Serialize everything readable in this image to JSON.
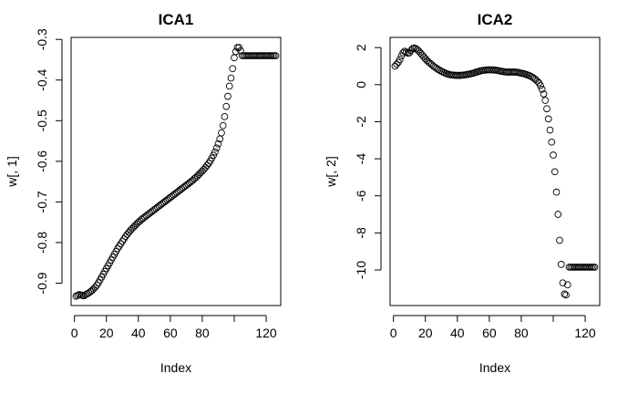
{
  "chart_data": [
    {
      "type": "scatter",
      "title": "ICA1",
      "xlabel": "Index",
      "ylabel": "w[, 1]",
      "xlim": [
        -2.1,
        129.1
      ],
      "ylim": [
        -0.955,
        -0.295
      ],
      "xticks": [
        0,
        20,
        40,
        60,
        80,
        100,
        120
      ],
      "xtick_labels": [
        "0",
        "20",
        "40",
        "60",
        "80",
        "",
        "120"
      ],
      "yticks": [
        -0.9,
        -0.8,
        -0.7,
        -0.6,
        -0.5,
        -0.4,
        -0.3
      ],
      "ytick_labels": [
        "-0.9",
        "-0.8",
        "-0.7",
        "-0.6",
        "-0.5",
        "-0.4",
        "-0.3"
      ],
      "marker": "open-circle",
      "grid": false,
      "x": [
        1,
        2,
        3,
        4,
        5,
        6,
        7,
        8,
        9,
        10,
        11,
        12,
        13,
        14,
        15,
        16,
        17,
        18,
        19,
        20,
        21,
        22,
        23,
        24,
        25,
        26,
        27,
        28,
        29,
        30,
        31,
        32,
        33,
        34,
        35,
        36,
        37,
        38,
        39,
        40,
        41,
        42,
        43,
        44,
        45,
        46,
        47,
        48,
        49,
        50,
        51,
        52,
        53,
        54,
        55,
        56,
        57,
        58,
        59,
        60,
        61,
        62,
        63,
        64,
        65,
        66,
        67,
        68,
        69,
        70,
        71,
        72,
        73,
        74,
        75,
        76,
        77,
        78,
        79,
        80,
        81,
        82,
        83,
        84,
        85,
        86,
        87,
        88,
        89,
        90,
        91,
        92,
        93,
        94,
        95,
        96,
        97,
        98,
        99,
        100,
        101,
        102,
        103,
        104,
        105,
        106,
        107,
        108,
        109,
        110,
        111,
        112,
        113,
        114,
        115,
        116,
        117,
        118,
        119,
        120,
        121,
        122,
        123,
        124,
        125,
        126
      ],
      "y": [
        -0.932,
        -0.93,
        -0.928,
        -0.929,
        -0.93,
        -0.931,
        -0.928,
        -0.926,
        -0.924,
        -0.921,
        -0.918,
        -0.914,
        -0.91,
        -0.905,
        -0.899,
        -0.892,
        -0.885,
        -0.878,
        -0.871,
        -0.864,
        -0.857,
        -0.85,
        -0.843,
        -0.836,
        -0.829,
        -0.822,
        -0.815,
        -0.809,
        -0.803,
        -0.797,
        -0.791,
        -0.785,
        -0.78,
        -0.775,
        -0.77,
        -0.766,
        -0.762,
        -0.758,
        -0.754,
        -0.75,
        -0.747,
        -0.743,
        -0.74,
        -0.737,
        -0.734,
        -0.731,
        -0.728,
        -0.725,
        -0.722,
        -0.719,
        -0.716,
        -0.713,
        -0.71,
        -0.707,
        -0.704,
        -0.701,
        -0.698,
        -0.695,
        -0.692,
        -0.689,
        -0.686,
        -0.683,
        -0.68,
        -0.677,
        -0.674,
        -0.671,
        -0.668,
        -0.665,
        -0.662,
        -0.659,
        -0.656,
        -0.653,
        -0.65,
        -0.647,
        -0.643,
        -0.64,
        -0.636,
        -0.632,
        -0.628,
        -0.624,
        -0.62,
        -0.615,
        -0.61,
        -0.605,
        -0.599,
        -0.592,
        -0.585,
        -0.577,
        -0.567,
        -0.557,
        -0.545,
        -0.53,
        -0.512,
        -0.49,
        -0.465,
        -0.44,
        -0.415,
        -0.395,
        -0.372,
        -0.345,
        -0.33,
        -0.32,
        -0.32,
        -0.328,
        -0.34,
        -0.34,
        -0.34,
        -0.34,
        -0.34,
        -0.34,
        -0.34,
        -0.34,
        -0.34,
        -0.34,
        -0.34,
        -0.34,
        -0.34,
        -0.34,
        -0.34,
        -0.34,
        -0.34,
        -0.34,
        -0.34,
        -0.34,
        -0.34,
        -0.34
      ]
    },
    {
      "type": "scatter",
      "title": "ICA2",
      "xlabel": "Index",
      "ylabel": "w[, 2]",
      "xlim": [
        -2.1,
        129.1
      ],
      "ylim": [
        -11.92,
        2.55
      ],
      "xticks": [
        0,
        20,
        40,
        60,
        80,
        100,
        120
      ],
      "xtick_labels": [
        "0",
        "20",
        "40",
        "60",
        "80",
        "",
        "120"
      ],
      "yticks": [
        -10,
        -8,
        -6,
        -4,
        -2,
        0,
        2
      ],
      "ytick_labels": [
        "-10",
        "-8",
        "-6",
        "-4",
        "-2",
        "0",
        "2"
      ],
      "marker": "open-circle",
      "grid": false,
      "x": [
        1,
        2,
        3,
        4,
        5,
        6,
        7,
        8,
        9,
        10,
        11,
        12,
        13,
        14,
        15,
        16,
        17,
        18,
        19,
        20,
        21,
        22,
        23,
        24,
        25,
        26,
        27,
        28,
        29,
        30,
        31,
        32,
        33,
        34,
        35,
        36,
        37,
        38,
        39,
        40,
        41,
        42,
        43,
        44,
        45,
        46,
        47,
        48,
        49,
        50,
        51,
        52,
        53,
        54,
        55,
        56,
        57,
        58,
        59,
        60,
        61,
        62,
        63,
        64,
        65,
        66,
        67,
        68,
        69,
        70,
        71,
        72,
        73,
        74,
        75,
        76,
        77,
        78,
        79,
        80,
        81,
        82,
        83,
        84,
        85,
        86,
        87,
        88,
        89,
        90,
        91,
        92,
        93,
        94,
        95,
        96,
        97,
        98,
        99,
        100,
        101,
        102,
        103,
        104,
        105,
        106,
        107,
        108,
        109,
        110,
        111,
        112,
        113,
        114,
        115,
        116,
        117,
        118,
        119,
        120,
        121,
        122,
        123,
        124,
        125,
        126
      ],
      "y": [
        1.0,
        1.1,
        1.2,
        1.35,
        1.55,
        1.72,
        1.8,
        1.75,
        1.7,
        1.72,
        1.85,
        1.95,
        1.98,
        1.95,
        1.88,
        1.8,
        1.7,
        1.6,
        1.5,
        1.4,
        1.3,
        1.22,
        1.15,
        1.08,
        1.0,
        0.94,
        0.88,
        0.82,
        0.77,
        0.72,
        0.68,
        0.64,
        0.6,
        0.57,
        0.55,
        0.53,
        0.52,
        0.51,
        0.5,
        0.5,
        0.5,
        0.5,
        0.51,
        0.52,
        0.53,
        0.55,
        0.56,
        0.58,
        0.6,
        0.62,
        0.65,
        0.68,
        0.7,
        0.73,
        0.75,
        0.77,
        0.78,
        0.79,
        0.8,
        0.8,
        0.8,
        0.8,
        0.79,
        0.78,
        0.77,
        0.75,
        0.73,
        0.72,
        0.7,
        0.69,
        0.68,
        0.68,
        0.68,
        0.68,
        0.68,
        0.68,
        0.67,
        0.66,
        0.64,
        0.62,
        0.6,
        0.58,
        0.55,
        0.52,
        0.49,
        0.45,
        0.4,
        0.34,
        0.27,
        0.19,
        0.1,
        -0.05,
        -0.25,
        -0.5,
        -0.85,
        -1.3,
        -1.85,
        -2.45,
        -3.1,
        -3.8,
        -4.7,
        -5.8,
        -7.0,
        -8.4,
        -9.7,
        -10.7,
        -11.3,
        -11.35,
        -10.8,
        -9.85,
        -9.85,
        -9.85,
        -9.85,
        -9.85,
        -9.85,
        -9.85,
        -9.85,
        -9.85,
        -9.85,
        -9.85,
        -9.85,
        -9.85,
        -9.85,
        -9.85,
        -9.85,
        -9.85
      ]
    }
  ]
}
